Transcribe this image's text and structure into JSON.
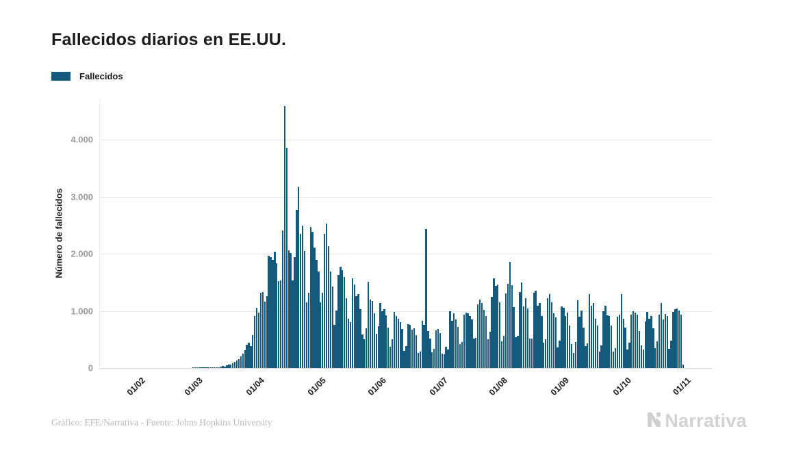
{
  "header": {
    "title": "Fallecidos diarios en EE.UU."
  },
  "legend": {
    "items": [
      {
        "label": "Fallecidos",
        "color": "#135a7c"
      }
    ]
  },
  "colors": {
    "bar": "#135a7c",
    "grid": "#e8e8e8",
    "tick_text": "#9b9b9b",
    "text": "#1c1c1c",
    "credit_text": "#b9b9b9",
    "brand_gray": "#d2d2d2"
  },
  "chart_data": {
    "type": "bar",
    "title": "Fallecidos diarios en EE.UU.",
    "series_name": "Fallecidos",
    "xlabel": "",
    "ylabel": "Número de fallecidos",
    "ylim": [
      0,
      4700
    ],
    "yticks": [
      0,
      1000,
      2000,
      3000,
      4000
    ],
    "ytick_labels": [
      "0",
      "1.000",
      "2.000",
      "3.000",
      "4.000"
    ],
    "grid": "horizontal",
    "legend_position": "top-left",
    "x_unit": "day",
    "x_start": "2020-02-01",
    "x_end": "2020-11-01",
    "xtick_labels": [
      "01/02",
      "01/03",
      "01/04",
      "01/05",
      "01/06",
      "01/07",
      "01/08",
      "01/09",
      "01/10",
      "01/11"
    ],
    "xtick_day_offsets": [
      0,
      29,
      60,
      91,
      121,
      152,
      182,
      213,
      244,
      274
    ],
    "values": [
      0,
      0,
      0,
      0,
      0,
      0,
      0,
      0,
      0,
      0,
      0,
      0,
      0,
      0,
      0,
      0,
      0,
      0,
      0,
      0,
      0,
      0,
      0,
      0,
      0,
      0,
      0,
      0,
      1,
      1,
      1,
      3,
      2,
      4,
      3,
      4,
      5,
      7,
      9,
      11,
      14,
      17,
      23,
      31,
      28,
      44,
      55,
      63,
      81,
      108,
      131,
      159,
      206,
      247,
      312,
      404,
      440,
      389,
      573,
      912,
      1050,
      968,
      1321,
      1331,
      1165,
      1255,
      1970,
      1940,
      1900,
      2035,
      1830,
      1528,
      1535,
      2408,
      4591,
      3865,
      2060,
      2010,
      1540,
      1940,
      2770,
      3176,
      2350,
      2500,
      2055,
      1152,
      1317,
      2470,
      2390,
      2110,
      1897,
      1691,
      1154,
      1324,
      2350,
      2528,
      2129,
      1687,
      1422,
      750,
      1008,
      1630,
      1772,
      1715,
      1595,
      1218,
      865,
      808,
      1568,
      1461,
      1263,
      1293,
      1036,
      592,
      505,
      693,
      1505,
      1199,
      1175,
      960,
      605,
      730,
      1134,
      995,
      1036,
      921,
      709,
      373,
      498,
      985,
      907,
      868,
      802,
      683,
      300,
      389,
      771,
      760,
      672,
      691,
      577,
      267,
      292,
      826,
      755,
      2437,
      642,
      512,
      271,
      335,
      662,
      679,
      613,
      252,
      235,
      376,
      324,
      993,
      829,
      964,
      849,
      715,
      420,
      456,
      935,
      970,
      963,
      908,
      853,
      516,
      531,
      1120,
      1195,
      1140,
      1019,
      916,
      502,
      634,
      1244,
      1570,
      1440,
      1460,
      1148,
      473,
      561,
      1302,
      1470,
      1860,
      1450,
      1064,
      541,
      565,
      1326,
      1504,
      1076,
      1218,
      1042,
      510,
      512,
      1324,
      1356,
      1090,
      1142,
      906,
      444,
      507,
      1222,
      1290,
      1148,
      956,
      888,
      363,
      483,
      1085,
      1058,
      912,
      967,
      748,
      420,
      267,
      457,
      1190,
      905,
      1006,
      706,
      389,
      436,
      1290,
      1087,
      1140,
      866,
      738,
      286,
      391,
      999,
      1090,
      920,
      908,
      741,
      285,
      344,
      897,
      940,
      1290,
      866,
      705,
      326,
      444,
      940,
      994,
      971,
      930,
      647,
      391,
      323,
      817,
      988,
      860,
      916,
      696,
      347,
      470,
      932,
      1135,
      852,
      953,
      915,
      340,
      477,
      986,
      1031,
      1040,
      1004,
      930,
      60
    ]
  },
  "footer": {
    "credit": "Gráfico: EFE/Narrativa - Fuente: Johns Hopkins University",
    "brand": "Narrativa"
  }
}
